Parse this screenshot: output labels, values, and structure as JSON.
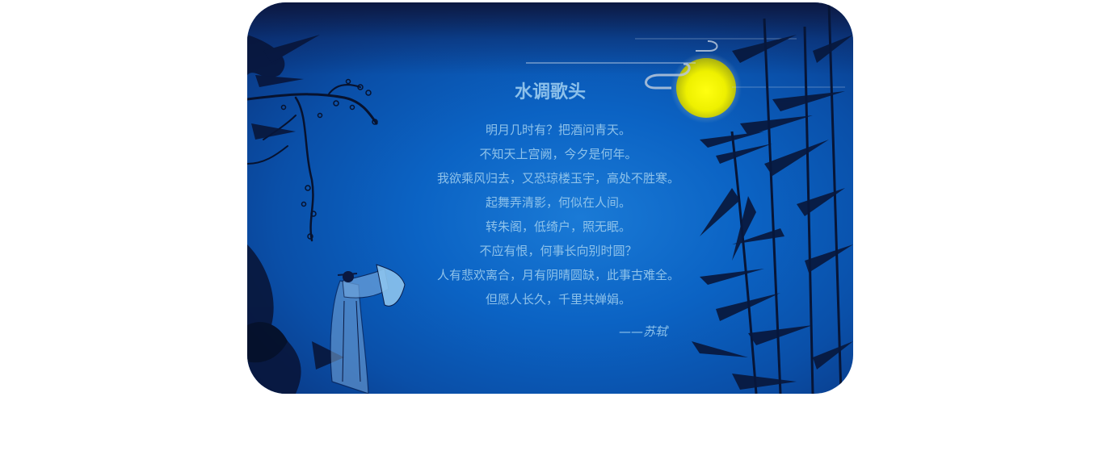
{
  "poem": {
    "title": "水调歌头",
    "lines": [
      "明月几时有？把酒问青天。",
      "不知天上宫阙，今夕是何年。",
      "我欲乘风归去，又恐琼楼玉宇，高处不胜寒。",
      "起舞弄清影，何似在人间。",
      "转朱阁，低绮户，照无眠。",
      "不应有恨，何事长向别时圆？",
      "人有悲欢离合，月有阴晴圆缺，此事古难全。",
      "但愿人长久，千里共婵娟。"
    ],
    "author": "——苏轼"
  },
  "colors": {
    "background": "#0b63c4",
    "text": "#8ec2ea",
    "moon": "#f3f000"
  }
}
